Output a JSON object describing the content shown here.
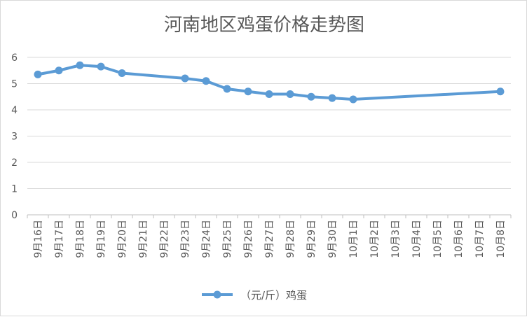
{
  "chart_data": {
    "type": "line",
    "title": "河南地区鸡蛋价格走势图",
    "categories": [
      "9月16日",
      "9月17日",
      "9月18日",
      "9月19日",
      "9月20日",
      "9月21日",
      "9月22日",
      "9月23日",
      "9月24日",
      "9月25日",
      "9月26日",
      "9月27日",
      "9月28日",
      "9月29日",
      "9月30日",
      "10月1日",
      "10月2日",
      "10月3日",
      "10月4日",
      "10月5日",
      "10月6日",
      "10月7日",
      "10月8日"
    ],
    "yticks": [
      "0",
      "1",
      "2",
      "3",
      "4",
      "5",
      "6"
    ],
    "ylim": [
      0,
      6
    ],
    "grid": true,
    "legend_position": "bottom",
    "series": [
      {
        "name": "（元/斤）鸡蛋",
        "color": "#5b9bd5",
        "points": [
          {
            "category": "9月16日",
            "value": 5.35
          },
          {
            "category": "9月17日",
            "value": 5.5
          },
          {
            "category": "9月18日",
            "value": 5.7
          },
          {
            "category": "9月19日",
            "value": 5.65
          },
          {
            "category": "9月20日",
            "value": 5.4
          },
          {
            "category": "9月23日",
            "value": 5.2
          },
          {
            "category": "9月24日",
            "value": 5.1
          },
          {
            "category": "9月25日",
            "value": 4.8
          },
          {
            "category": "9月26日",
            "value": 4.7
          },
          {
            "category": "9月27日",
            "value": 4.6
          },
          {
            "category": "9月28日",
            "value": 4.6
          },
          {
            "category": "9月29日",
            "value": 4.5
          },
          {
            "category": "9月30日",
            "value": 4.45
          },
          {
            "category": "10月1日",
            "value": 4.4
          },
          {
            "category": "10月8日",
            "value": 4.7
          }
        ]
      }
    ]
  }
}
